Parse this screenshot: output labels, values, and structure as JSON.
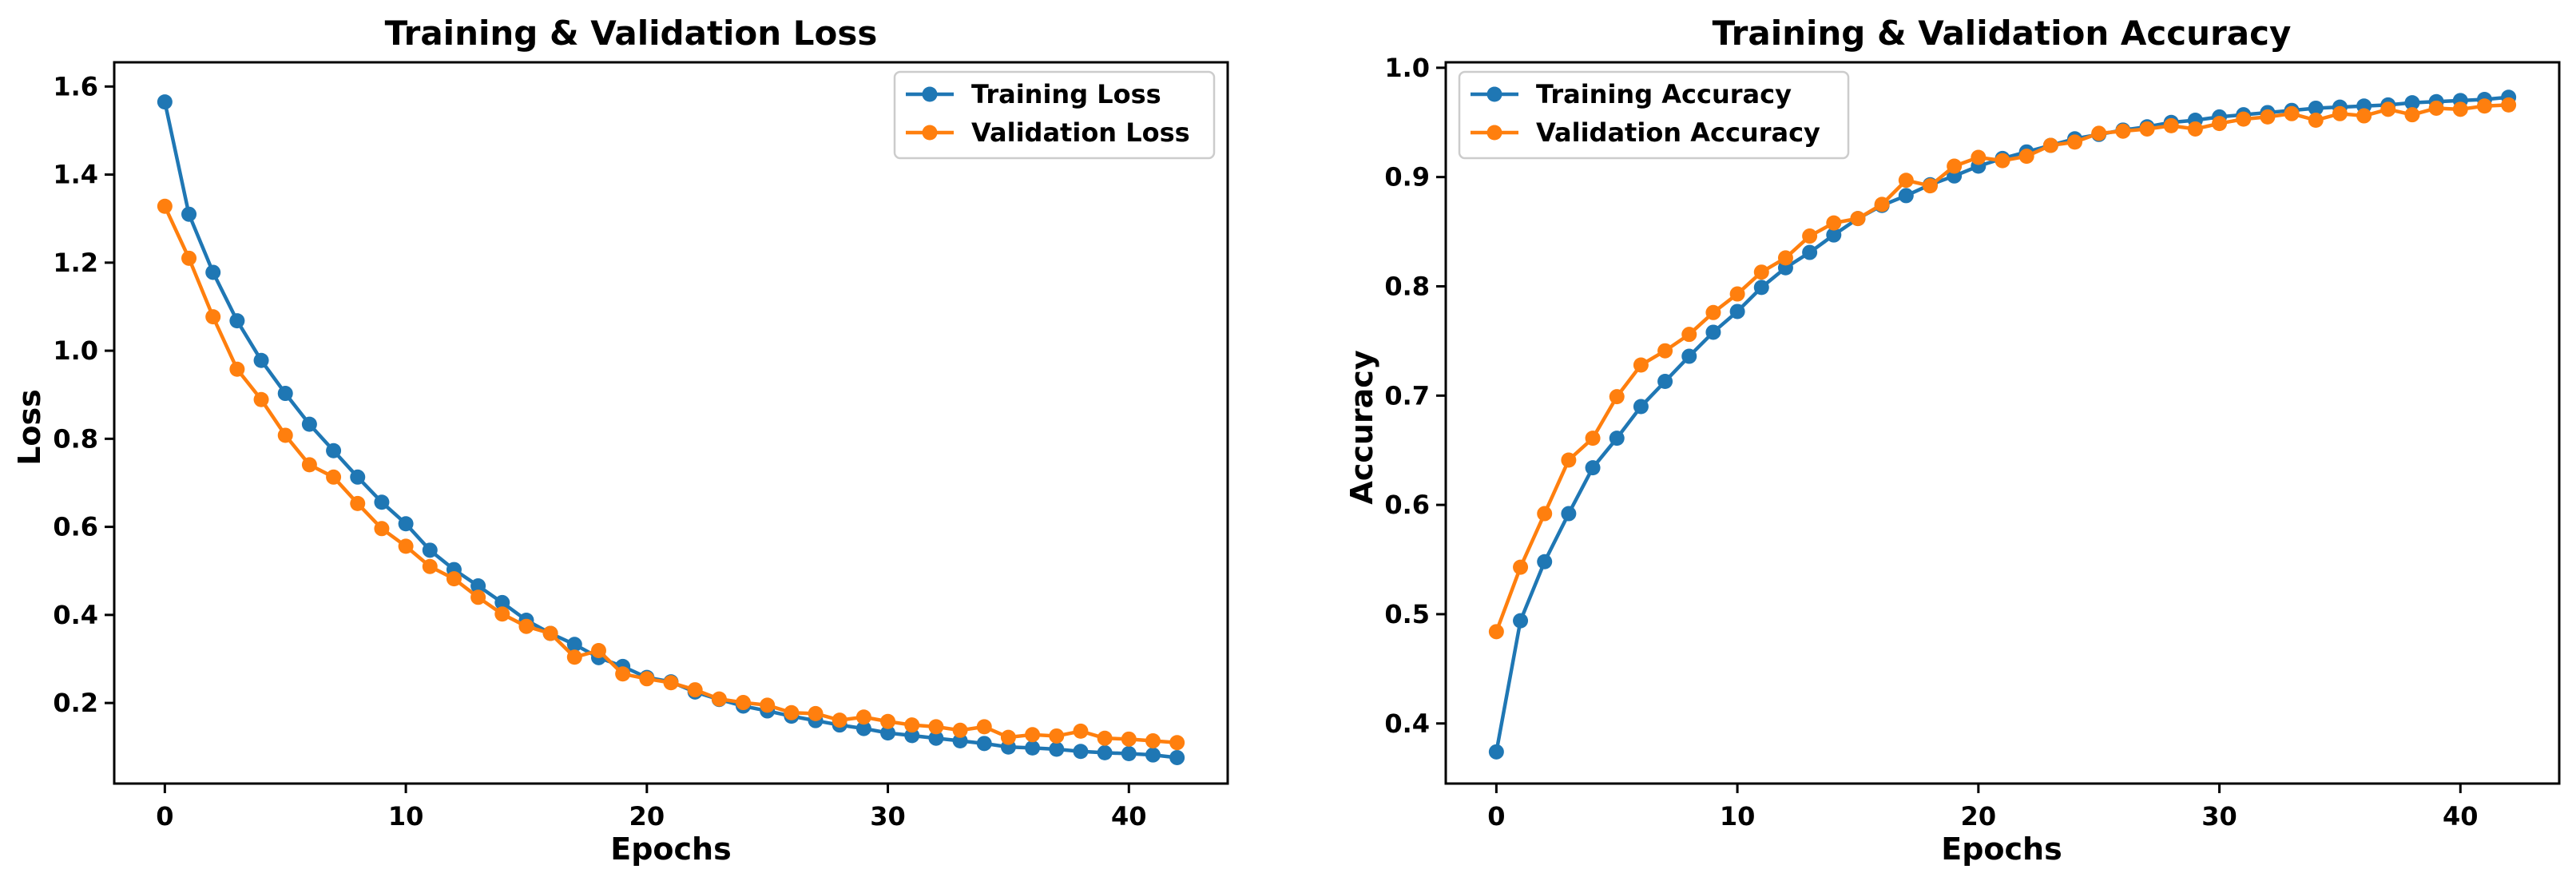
{
  "colors": {
    "training": "#1f77b4",
    "validation": "#ff7f0e"
  },
  "chart_data": [
    {
      "type": "line",
      "title": "Training & Validation Loss",
      "xlabel": "Epochs",
      "ylabel": "Loss",
      "xlim": [
        -2.1,
        44.1
      ],
      "ylim": [
        0.017,
        1.655
      ],
      "xticks": [
        0,
        10,
        20,
        30,
        40
      ],
      "yticks": [
        0.2,
        0.4,
        0.6,
        0.8,
        1.0,
        1.2,
        1.4,
        1.6
      ],
      "xtick_labels": [
        "0",
        "10",
        "20",
        "30",
        "40"
      ],
      "ytick_labels": [
        "0.2",
        "0.4",
        "0.6",
        "0.8",
        "1.0",
        "1.2",
        "1.4",
        "1.6"
      ],
      "grid": false,
      "legend_position": "top-right",
      "legend": [
        "Training Loss",
        "Validation Loss"
      ],
      "x": [
        0,
        1,
        2,
        3,
        4,
        5,
        6,
        7,
        8,
        9,
        10,
        11,
        12,
        13,
        14,
        15,
        16,
        17,
        18,
        19,
        20,
        21,
        22,
        23,
        24,
        25,
        26,
        27,
        28,
        29,
        30,
        31,
        32,
        33,
        34,
        35,
        36,
        37,
        38,
        39,
        40,
        41,
        42
      ],
      "series": [
        {
          "name": "Training Loss",
          "color": "#1f77b4",
          "values": [
            1.565,
            1.31,
            1.178,
            1.068,
            0.978,
            0.903,
            0.833,
            0.773,
            0.713,
            0.656,
            0.607,
            0.547,
            0.503,
            0.466,
            0.428,
            0.388,
            0.358,
            0.333,
            0.303,
            0.283,
            0.258,
            0.248,
            0.225,
            0.208,
            0.193,
            0.182,
            0.17,
            0.16,
            0.15,
            0.142,
            0.132,
            0.126,
            0.12,
            0.114,
            0.108,
            0.1,
            0.098,
            0.095,
            0.09,
            0.087,
            0.085,
            0.082,
            0.076
          ]
        },
        {
          "name": "Validation Loss",
          "color": "#ff7f0e",
          "values": [
            1.328,
            1.21,
            1.077,
            0.958,
            0.889,
            0.808,
            0.741,
            0.713,
            0.653,
            0.596,
            0.556,
            0.51,
            0.482,
            0.44,
            0.402,
            0.374,
            0.358,
            0.304,
            0.319,
            0.266,
            0.255,
            0.246,
            0.23,
            0.209,
            0.201,
            0.195,
            0.178,
            0.176,
            0.161,
            0.168,
            0.158,
            0.15,
            0.146,
            0.138,
            0.146,
            0.122,
            0.128,
            0.125,
            0.136,
            0.12,
            0.118,
            0.114,
            0.11
          ]
        }
      ]
    },
    {
      "type": "line",
      "title": "Training & Validation Accuracy",
      "xlabel": "Epochs",
      "ylabel": "Accuracy",
      "xlim": [
        -2.1,
        44.1
      ],
      "ylim": [
        0.345,
        1.005
      ],
      "xticks": [
        0,
        10,
        20,
        30,
        40
      ],
      "yticks": [
        0.4,
        0.5,
        0.6,
        0.7,
        0.8,
        0.9,
        1.0
      ],
      "xtick_labels": [
        "0",
        "10",
        "20",
        "30",
        "40"
      ],
      "ytick_labels": [
        "0.4",
        "0.5",
        "0.6",
        "0.7",
        "0.8",
        "0.9",
        "1.0"
      ],
      "grid": false,
      "legend_position": "top-left",
      "legend": [
        "Training Accuracy",
        "Validation Accuracy"
      ],
      "x": [
        0,
        1,
        2,
        3,
        4,
        5,
        6,
        7,
        8,
        9,
        10,
        11,
        12,
        13,
        14,
        15,
        16,
        17,
        18,
        19,
        20,
        21,
        22,
        23,
        24,
        25,
        26,
        27,
        28,
        29,
        30,
        31,
        32,
        33,
        34,
        35,
        36,
        37,
        38,
        39,
        40,
        41,
        42
      ],
      "series": [
        {
          "name": "Training Accuracy",
          "color": "#1f77b4",
          "values": [
            0.374,
            0.494,
            0.548,
            0.592,
            0.634,
            0.661,
            0.69,
            0.713,
            0.736,
            0.758,
            0.777,
            0.799,
            0.817,
            0.831,
            0.847,
            0.862,
            0.874,
            0.883,
            0.893,
            0.901,
            0.91,
            0.917,
            0.923,
            0.929,
            0.935,
            0.939,
            0.943,
            0.946,
            0.95,
            0.952,
            0.955,
            0.957,
            0.959,
            0.961,
            0.963,
            0.964,
            0.965,
            0.966,
            0.968,
            0.969,
            0.97,
            0.971,
            0.973
          ]
        },
        {
          "name": "Validation Accuracy",
          "color": "#ff7f0e",
          "values": [
            0.484,
            0.543,
            0.592,
            0.641,
            0.661,
            0.699,
            0.728,
            0.741,
            0.756,
            0.776,
            0.793,
            0.813,
            0.826,
            0.846,
            0.858,
            0.862,
            0.875,
            0.897,
            0.892,
            0.91,
            0.918,
            0.915,
            0.919,
            0.929,
            0.932,
            0.94,
            0.942,
            0.944,
            0.947,
            0.944,
            0.949,
            0.953,
            0.955,
            0.958,
            0.952,
            0.958,
            0.956,
            0.962,
            0.957,
            0.963,
            0.962,
            0.965,
            0.966
          ]
        }
      ]
    }
  ]
}
